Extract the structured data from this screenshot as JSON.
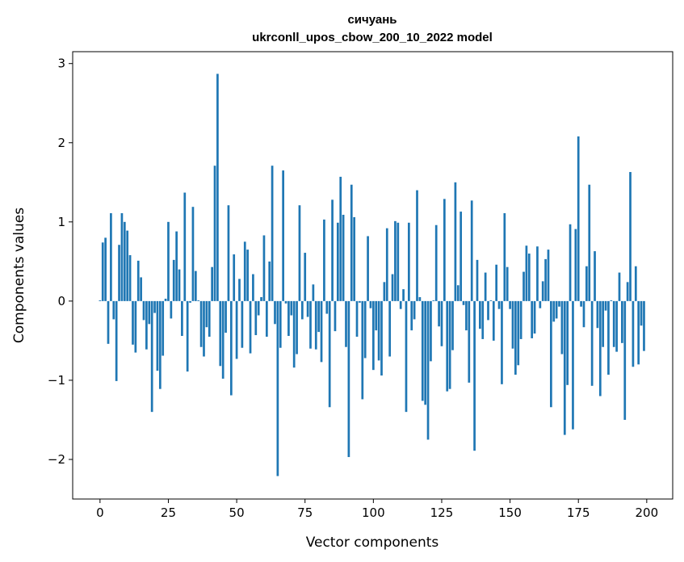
{
  "chart_data": {
    "type": "bar",
    "title": [
      "сичуань",
      "ukrconll_upos_cbow_200_10_2022 model"
    ],
    "xlabel": "Vector components",
    "ylabel": "Components values",
    "xlim": [
      -10,
      209.5
    ],
    "ylim": [
      -2.5,
      3.15
    ],
    "xticks": [
      0,
      25,
      50,
      75,
      100,
      125,
      150,
      175,
      200
    ],
    "xtick_labels": [
      "0",
      "25",
      "50",
      "75",
      "100",
      "125",
      "150",
      "175",
      "200"
    ],
    "yticks": [
      -2,
      -1,
      0,
      1,
      2,
      3
    ],
    "ytick_labels": [
      "−2",
      "−1",
      "0",
      "1",
      "2",
      "3"
    ],
    "grid": false,
    "bar_color": "#1f77b4",
    "values": [
      0.01,
      0.74,
      0.8,
      -0.54,
      1.11,
      -0.23,
      -1.01,
      0.71,
      1.11,
      1.0,
      0.89,
      0.58,
      -0.55,
      -0.65,
      0.51,
      0.3,
      -0.24,
      -0.61,
      -0.29,
      -1.4,
      -0.15,
      -0.88,
      -1.11,
      -0.69,
      0.03,
      1.0,
      -0.22,
      0.52,
      0.88,
      0.4,
      -0.44,
      1.37,
      -0.89,
      -0.02,
      1.19,
      0.38,
      0.01,
      -0.58,
      -0.7,
      -0.33,
      -0.45,
      0.43,
      1.71,
      2.87,
      -0.82,
      -0.98,
      -0.4,
      1.21,
      -1.19,
      0.59,
      -0.73,
      0.28,
      -0.59,
      0.75,
      0.65,
      -0.66,
      0.34,
      -0.43,
      -0.18,
      0.05,
      0.83,
      -0.45,
      0.5,
      1.71,
      -0.29,
      -2.21,
      -0.59,
      1.65,
      -0.03,
      -0.44,
      -0.18,
      -0.84,
      -0.67,
      1.21,
      -0.23,
      0.61,
      -0.2,
      -0.6,
      0.21,
      -0.61,
      -0.39,
      -0.77,
      1.03,
      -0.16,
      -1.34,
      1.28,
      -0.38,
      0.99,
      1.57,
      1.09,
      -0.58,
      -1.97,
      1.47,
      1.06,
      -0.45,
      -0.02,
      -1.24,
      -0.72,
      0.82,
      -0.09,
      -0.87,
      -0.37,
      -0.75,
      -0.94,
      0.24,
      0.92,
      -0.7,
      0.34,
      1.01,
      0.99,
      -0.1,
      0.15,
      -1.4,
      0.99,
      -0.37,
      -0.23,
      1.4,
      0.05,
      -1.26,
      -1.31,
      -1.75,
      -0.76,
      0.01,
      0.96,
      -0.32,
      -0.57,
      1.29,
      -1.14,
      -1.11,
      -0.62,
      1.5,
      0.2,
      1.13,
      -0.05,
      -0.37,
      -1.03,
      1.27,
      -1.89,
      0.52,
      -0.35,
      -0.48,
      0.36,
      -0.24,
      0.01,
      -0.5,
      0.46,
      -0.1,
      -1.05,
      1.11,
      0.43,
      -0.1,
      -0.6,
      -0.93,
      -0.81,
      -0.48,
      0.37,
      0.7,
      0.6,
      -0.47,
      -0.41,
      0.69,
      -0.09,
      0.25,
      0.53,
      0.65,
      -1.34,
      -0.26,
      -0.22,
      -0.07,
      -0.67,
      -1.69,
      -1.06,
      0.97,
      -1.62,
      0.91,
      2.08,
      -0.07,
      -0.33,
      0.44,
      1.47,
      -1.07,
      0.63,
      -0.34,
      -1.2,
      -0.58,
      -0.12,
      -0.93,
      0.01,
      -0.58,
      -0.64,
      0.36,
      -0.53,
      -1.5,
      0.24,
      1.63,
      -0.83,
      0.44,
      -0.8,
      -0.31,
      -0.63
    ]
  }
}
